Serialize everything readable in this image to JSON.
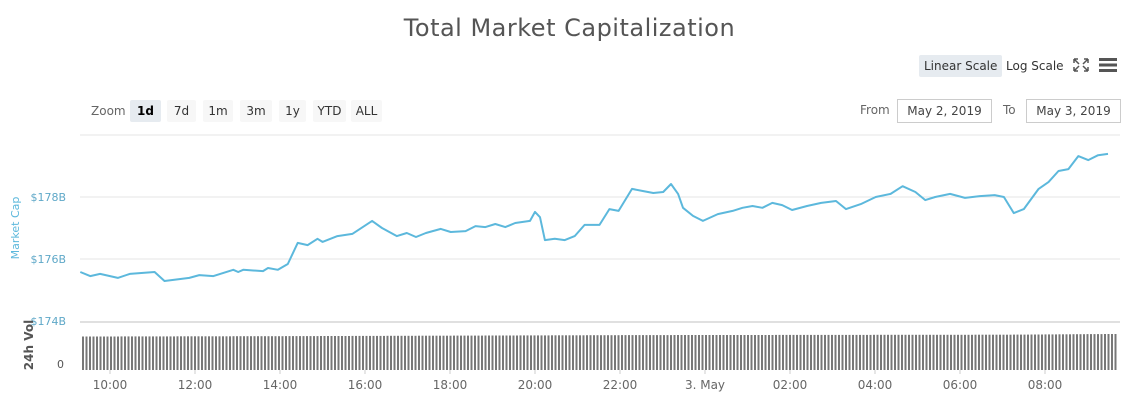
{
  "title": "Total Market Capitalization",
  "toolbar": {
    "linear_scale": "Linear Scale",
    "log_scale": "Log Scale",
    "active_scale": "Linear Scale",
    "fullscreen_icon": "fullscreen-icon",
    "menu_icon": "hamburger-menu-icon"
  },
  "zoom": {
    "label": "Zoom",
    "options": [
      "1d",
      "7d",
      "1m",
      "3m",
      "1y",
      "YTD",
      "ALL"
    ],
    "active": "1d"
  },
  "range": {
    "from_label": "From",
    "from_value": "May 2, 2019",
    "to_label": "To",
    "to_value": "May 3, 2019"
  },
  "colors": {
    "line": "#5cb8dc",
    "volume": "#777777",
    "axis_label": "#5cb8dc",
    "grid": "#e6e6e6"
  },
  "chart_data": {
    "type": "line",
    "title": "Total Market Capitalization",
    "ylabel": "Market Cap",
    "ylim": [
      174,
      180
    ],
    "yticks": [
      "$174B",
      "$176B",
      "$178B"
    ],
    "ytick_values": [
      174,
      176,
      178
    ],
    "xticks": [
      "10:00",
      "12:00",
      "14:00",
      "16:00",
      "18:00",
      "20:00",
      "22:00",
      "3. May",
      "02:00",
      "04:00",
      "06:00",
      "08:00"
    ],
    "xtick_times": [
      "2019-05-02 10:00",
      "2019-05-02 12:00",
      "2019-05-02 14:00",
      "2019-05-02 16:00",
      "2019-05-02 18:00",
      "2019-05-02 20:00",
      "2019-05-02 22:00",
      "2019-05-03 00:00",
      "2019-05-03 02:00",
      "2019-05-03 04:00",
      "2019-05-03 06:00",
      "2019-05-03 08:00"
    ],
    "grid": true,
    "unit": "billion USD",
    "series": [
      {
        "points": [
          [
            "2019-05-02 09:18",
            175.58
          ],
          [
            "2019-05-02 09:32",
            175.45
          ],
          [
            "2019-05-02 09:46",
            175.52
          ],
          [
            "2019-05-02 10:11",
            175.39
          ],
          [
            "2019-05-02 10:28",
            175.52
          ],
          [
            "2019-05-02 11:03",
            175.58
          ],
          [
            "2019-05-02 11:17",
            175.29
          ],
          [
            "2019-05-02 11:52",
            175.39
          ],
          [
            "2019-05-02 12:06",
            175.48
          ],
          [
            "2019-05-02 12:26",
            175.45
          ],
          [
            "2019-05-02 12:54",
            175.65
          ],
          [
            "2019-05-02 13:01",
            175.58
          ],
          [
            "2019-05-02 13:08",
            175.65
          ],
          [
            "2019-05-02 13:36",
            175.61
          ],
          [
            "2019-05-02 13:43",
            175.71
          ],
          [
            "2019-05-02 13:57",
            175.65
          ],
          [
            "2019-05-02 14:11",
            175.84
          ],
          [
            "2019-05-02 14:25",
            176.52
          ],
          [
            "2019-05-02 14:39",
            176.45
          ],
          [
            "2019-05-02 14:53",
            176.65
          ],
          [
            "2019-05-02 15:00",
            176.55
          ],
          [
            "2019-05-02 15:21",
            176.74
          ],
          [
            "2019-05-02 15:42",
            176.81
          ],
          [
            "2019-05-02 16:10",
            177.23
          ],
          [
            "2019-05-02 16:24",
            177.0
          ],
          [
            "2019-05-02 16:45",
            176.74
          ],
          [
            "2019-05-02 16:59",
            176.84
          ],
          [
            "2019-05-02 17:12",
            176.71
          ],
          [
            "2019-05-02 17:26",
            176.84
          ],
          [
            "2019-05-02 17:47",
            176.97
          ],
          [
            "2019-05-02 18:01",
            176.87
          ],
          [
            "2019-05-02 18:22",
            176.9
          ],
          [
            "2019-05-02 18:36",
            177.06
          ],
          [
            "2019-05-02 18:50",
            177.03
          ],
          [
            "2019-05-02 19:04",
            177.13
          ],
          [
            "2019-05-02 19:18",
            177.03
          ],
          [
            "2019-05-02 19:32",
            177.16
          ],
          [
            "2019-05-02 19:53",
            177.23
          ],
          [
            "2019-05-02 20:00",
            177.52
          ],
          [
            "2019-05-02 20:07",
            177.35
          ],
          [
            "2019-05-02 20:14",
            176.61
          ],
          [
            "2019-05-02 20:28",
            176.65
          ],
          [
            "2019-05-02 20:42",
            176.61
          ],
          [
            "2019-05-02 20:56",
            176.74
          ],
          [
            "2019-05-02 21:10",
            177.1
          ],
          [
            "2019-05-02 21:31",
            177.1
          ],
          [
            "2019-05-02 21:45",
            177.61
          ],
          [
            "2019-05-02 21:58",
            177.55
          ],
          [
            "2019-05-02 22:17",
            178.26
          ],
          [
            "2019-05-02 22:33",
            178.19
          ],
          [
            "2019-05-02 22:47",
            178.13
          ],
          [
            "2019-05-02 23:01",
            178.16
          ],
          [
            "2019-05-02 23:12",
            178.42
          ],
          [
            "2019-05-02 23:22",
            178.1
          ],
          [
            "2019-05-02 23:29",
            177.65
          ],
          [
            "2019-05-02 23:43",
            177.39
          ],
          [
            "2019-05-02 23:57",
            177.23
          ],
          [
            "2019-05-03 00:18",
            177.45
          ],
          [
            "2019-05-03 00:39",
            177.55
          ],
          [
            "2019-05-03 00:53",
            177.65
          ],
          [
            "2019-05-03 01:07",
            177.71
          ],
          [
            "2019-05-03 01:21",
            177.65
          ],
          [
            "2019-05-03 01:35",
            177.81
          ],
          [
            "2019-05-03 01:49",
            177.74
          ],
          [
            "2019-05-03 02:03",
            177.58
          ],
          [
            "2019-05-03 02:24",
            177.71
          ],
          [
            "2019-05-03 02:44",
            177.81
          ],
          [
            "2019-05-03 03:05",
            177.87
          ],
          [
            "2019-05-03 03:19",
            177.61
          ],
          [
            "2019-05-03 03:40",
            177.77
          ],
          [
            "2019-05-03 04:01",
            178.0
          ],
          [
            "2019-05-03 04:22",
            178.1
          ],
          [
            "2019-05-03 04:39",
            178.35
          ],
          [
            "2019-05-03 04:57",
            178.16
          ],
          [
            "2019-05-03 05:11",
            177.9
          ],
          [
            "2019-05-03 05:25",
            178.0
          ],
          [
            "2019-05-03 05:46",
            178.1
          ],
          [
            "2019-05-03 06:07",
            177.97
          ],
          [
            "2019-05-03 06:28",
            178.03
          ],
          [
            "2019-05-03 06:49",
            178.06
          ],
          [
            "2019-05-03 07:02",
            178.0
          ],
          [
            "2019-05-03 07:16",
            177.48
          ],
          [
            "2019-05-03 07:30",
            177.61
          ],
          [
            "2019-05-03 07:51",
            178.26
          ],
          [
            "2019-05-03 08:05",
            178.48
          ],
          [
            "2019-05-03 08:19",
            178.84
          ],
          [
            "2019-05-03 08:33",
            178.9
          ],
          [
            "2019-05-03 08:47",
            179.32
          ],
          [
            "2019-05-03 09:01",
            179.19
          ],
          [
            "2019-05-03 09:15",
            179.35
          ],
          [
            "2019-05-03 09:29",
            179.39
          ]
        ]
      }
    ],
    "volume": {
      "label": "24h Vol",
      "ytick": "0",
      "relative_levels": [
        [
          "2019-05-02 09:18",
          0.93
        ],
        [
          "2019-05-02 14:00",
          0.94
        ],
        [
          "2019-05-02 22:30",
          0.97
        ],
        [
          "2019-05-03 07:00",
          0.98
        ],
        [
          "2019-05-03 09:29",
          1.0
        ]
      ]
    }
  }
}
